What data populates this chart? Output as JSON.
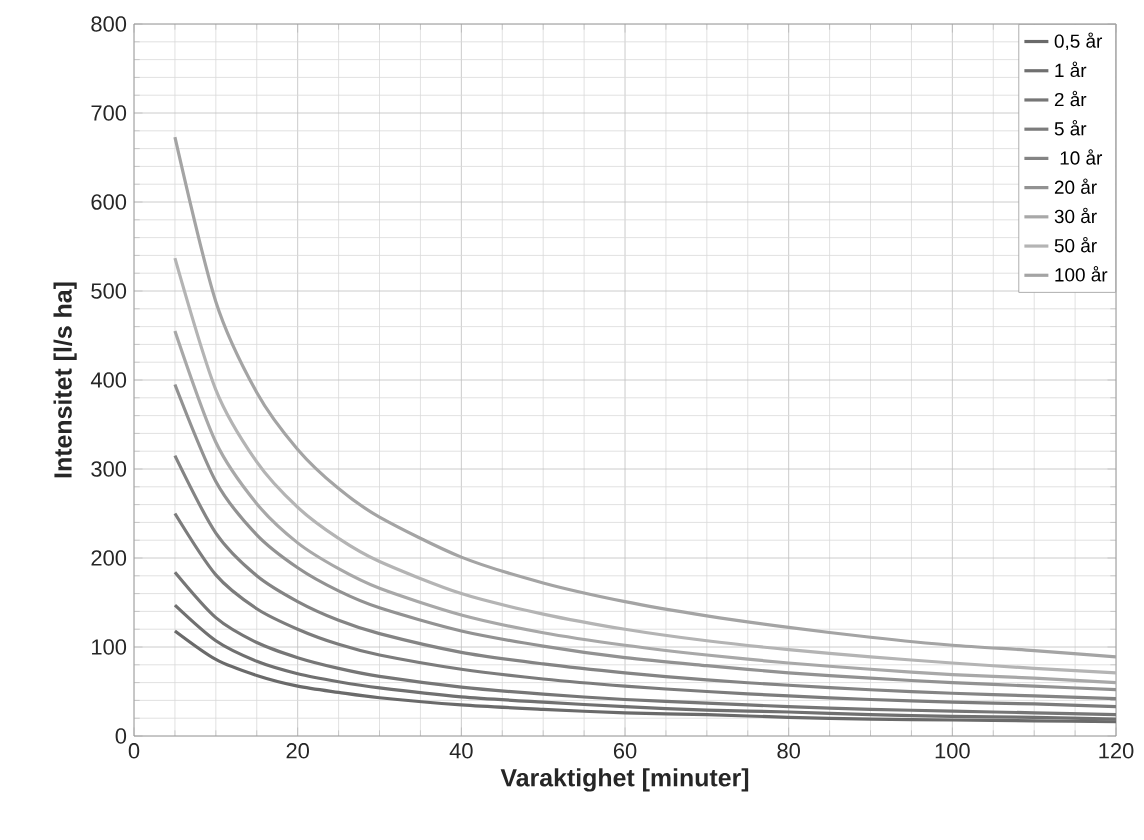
{
  "chart_data": {
    "type": "line",
    "xlabel": "Varaktighet [minuter]",
    "ylabel": "Intensitet [l/s ha]",
    "x": [
      5,
      10,
      15,
      20,
      25,
      30,
      40,
      50,
      60,
      70,
      80,
      90,
      100,
      110,
      120
    ],
    "series": [
      {
        "name": "0,5 år",
        "color": "#6a6a6a",
        "values": [
          118,
          86,
          68,
          56,
          49,
          43,
          35,
          30,
          26,
          24,
          21,
          19,
          18,
          17,
          16
        ]
      },
      {
        "name": "1 år",
        "color": "#707070",
        "values": [
          147,
          107,
          84,
          70,
          61,
          54,
          44,
          38,
          33,
          29,
          27,
          24,
          22,
          21,
          19
        ]
      },
      {
        "name": "2 år",
        "color": "#767676",
        "values": [
          184,
          133,
          105,
          88,
          76,
          67,
          55,
          47,
          41,
          37,
          33,
          30,
          28,
          26,
          24
        ]
      },
      {
        "name": "5 år",
        "color": "#7c7c7c",
        "values": [
          250,
          181,
          143,
          120,
          103,
          91,
          75,
          64,
          56,
          50,
          45,
          41,
          38,
          36,
          33
        ]
      },
      {
        "name": " 10 år",
        "color": "#848484",
        "values": [
          315,
          228,
          180,
          151,
          130,
          115,
          94,
          81,
          71,
          63,
          57,
          52,
          48,
          45,
          42
        ]
      },
      {
        "name": "20 år",
        "color": "#929292",
        "values": [
          395,
          286,
          226,
          189,
          163,
          144,
          118,
          101,
          88,
          79,
          71,
          65,
          60,
          56,
          52
        ]
      },
      {
        "name": "30 år",
        "color": "#a8a8a8",
        "values": [
          455,
          330,
          261,
          217,
          188,
          166,
          136,
          116,
          102,
          91,
          82,
          75,
          69,
          65,
          60
        ]
      },
      {
        "name": "50 år",
        "color": "#b4b4b4",
        "values": [
          537,
          389,
          308,
          257,
          222,
          196,
          160,
          137,
          120,
          107,
          97,
          89,
          82,
          76,
          71
        ]
      },
      {
        "name": "100 år",
        "color": "#a4a4a4",
        "values": [
          673,
          488,
          386,
          322,
          278,
          246,
          201,
          172,
          151,
          135,
          122,
          111,
          102,
          96,
          89
        ]
      }
    ],
    "xlim": [
      0,
      120
    ],
    "ylim": [
      0,
      800
    ],
    "xticks": [
      0,
      20,
      40,
      60,
      80,
      100,
      120
    ],
    "yticks": [
      0,
      100,
      200,
      300,
      400,
      500,
      600,
      700,
      800
    ],
    "grid": true,
    "legend": "top right",
    "marker": "none",
    "line_style": "solid"
  }
}
